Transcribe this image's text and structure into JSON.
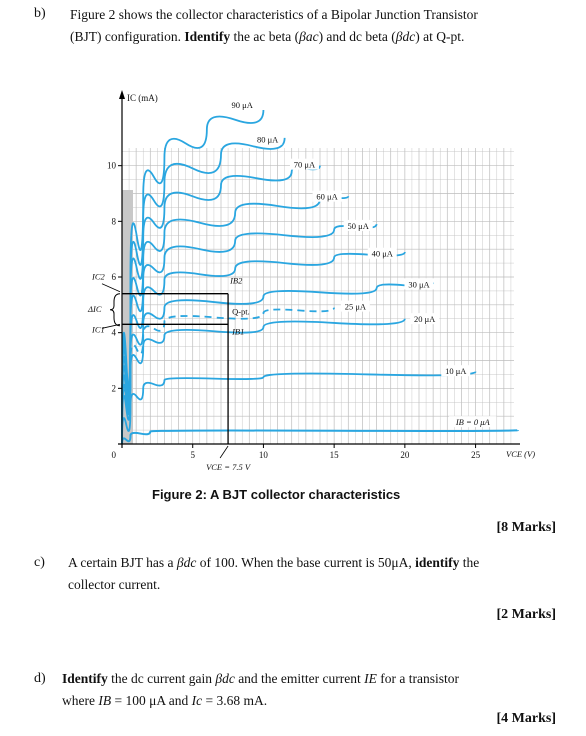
{
  "questions": {
    "b": {
      "label": "b)",
      "line1_pre": "Figure 2 shows the collector characteristics of a Bipolar Junction Transistor",
      "line2_pre": "(BJT) configuration. ",
      "line2_bold": "Identify",
      "line2_mid": " the ac beta (",
      "beta_ac": "βac",
      "line2_mid2": ") and dc beta (",
      "beta_dc": "βdc",
      "line2_end": ") at Q-pt.",
      "caption": "Figure 2: A BJT collector characteristics",
      "marks": "[8 Marks]"
    },
    "c": {
      "label": "c)",
      "line1_pre": "A certain BJT has a ",
      "beta": "βdc",
      "line1_mid": " of 100. When the base current is 50μA, ",
      "line1_bold": "identify",
      "line1_end": " the",
      "line2": "collector current.",
      "marks": "[2 Marks]"
    },
    "d": {
      "label": "d)",
      "line1_bold": "Identify",
      "line1_mid": " the dc current gain ",
      "beta": "βdc",
      "line1_mid2": " and the emitter current ",
      "ie": "IE",
      "line1_end": " for a transistor",
      "line2_pre": "where ",
      "ib": "IB",
      "line2_mid": " = 100 μA and ",
      "ic": "Ic",
      "line2_end": " = 3.68 mA.",
      "marks": "[4 Marks]"
    }
  },
  "chart_data": {
    "type": "line",
    "title": "",
    "xlabel": "VCE (V)",
    "ylabel": "IC (mA)",
    "xlim": [
      0,
      28
    ],
    "ylim": [
      0,
      12
    ],
    "x_ticks": [
      5,
      10,
      15,
      20,
      25
    ],
    "y_ticks": [
      2,
      4,
      6,
      8,
      10
    ],
    "origin_label": "0",
    "grid": true,
    "series_color": "#2aa6e0",
    "series": [
      {
        "name": "90 μA",
        "x": [
          0,
          0.6,
          1.5,
          3,
          6,
          10
        ],
        "values": [
          0,
          6.0,
          8.9,
          10.3,
          11.3,
          12.0
        ]
      },
      {
        "name": "80 μA",
        "x": [
          0,
          0.6,
          1.5,
          3,
          7,
          11.5
        ],
        "values": [
          0,
          5.6,
          8.1,
          9.4,
          10.4,
          11.0
        ]
      },
      {
        "name": "70 μA",
        "x": [
          0,
          0.6,
          1.5,
          3,
          7,
          12,
          14
        ],
        "values": [
          0,
          5.2,
          7.4,
          8.5,
          9.3,
          9.8,
          10.0
        ]
      },
      {
        "name": "60 μA",
        "x": [
          0,
          0.6,
          1.5,
          3,
          8,
          14,
          16
        ],
        "values": [
          0,
          4.7,
          6.6,
          7.6,
          8.3,
          8.8,
          8.9
        ]
      },
      {
        "name": "50 μA",
        "x": [
          0,
          0.6,
          1.5,
          3,
          8,
          15,
          18
        ],
        "values": [
          0,
          4.2,
          5.9,
          6.7,
          7.3,
          7.7,
          7.9
        ]
      },
      {
        "name": "40 μA",
        "x": [
          0,
          0.6,
          1.5,
          3,
          8,
          15,
          20
        ],
        "values": [
          0,
          3.7,
          5.1,
          5.9,
          6.3,
          6.7,
          6.9
        ]
      },
      {
        "name": "30 μA",
        "x": [
          0,
          0.6,
          1.5,
          3,
          10,
          18,
          22
        ],
        "values": [
          0,
          3.2,
          4.3,
          4.9,
          5.3,
          5.6,
          5.8
        ]
      },
      {
        "name": "25 μA",
        "x": [
          0,
          0.6,
          1.5,
          3,
          10,
          15
        ],
        "values": [
          0,
          2.9,
          3.9,
          4.4,
          4.7,
          4.9
        ]
      },
      {
        "name": "20 μA",
        "x": [
          0,
          0.6,
          1.5,
          3,
          10,
          20
        ],
        "values": [
          0,
          2.6,
          3.5,
          3.9,
          4.2,
          4.5
        ]
      },
      {
        "name": "10 μA",
        "x": [
          0,
          0.6,
          1.5,
          3,
          10,
          25
        ],
        "values": [
          0,
          1.4,
          2.0,
          2.3,
          2.4,
          2.6
        ]
      },
      {
        "name": "IB = 0 μA",
        "x": [
          0,
          0.6,
          2,
          28
        ],
        "values": [
          0,
          0.3,
          0.45,
          0.5
        ]
      }
    ],
    "annotations": {
      "q_point": "Q-pt.",
      "q_point_value": {
        "x": 7.5,
        "y": 4.3
      },
      "ic2_level": 5.4,
      "ic1_level": 4.3,
      "ic2_label": "IC2",
      "ic1_label": "IC1",
      "delta_label": "ΔIC",
      "ib2_label": "IB2",
      "ib1_label": "IB1",
      "vce_label": "VCE = 7.5 V"
    }
  }
}
